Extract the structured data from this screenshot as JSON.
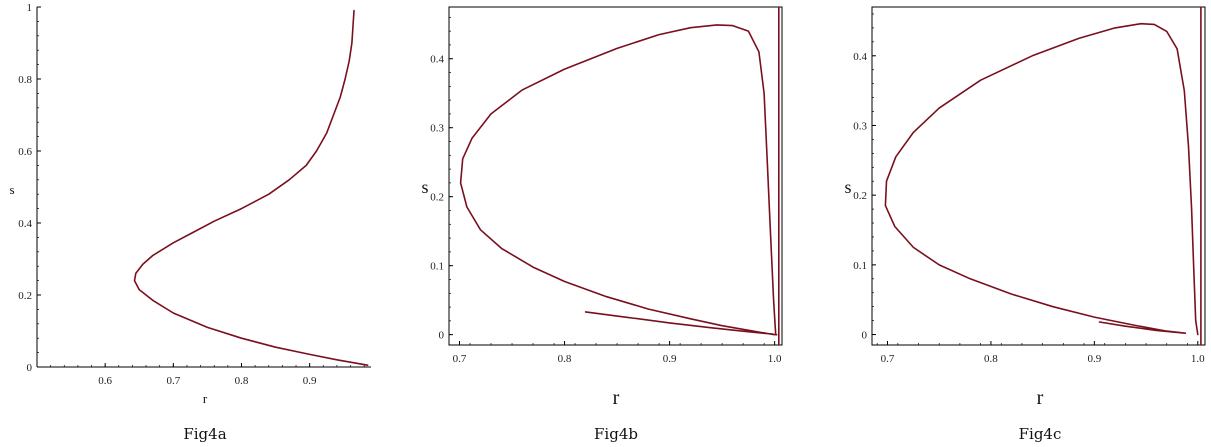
{
  "line_color": "#7a0f1e",
  "chart_data": [
    {
      "type": "line",
      "caption": "Fig4a",
      "xlabel": "r",
      "ylabel": "s",
      "xlim": [
        0.5,
        0.99
      ],
      "ylim": [
        0,
        1
      ],
      "x_ticks": [
        "0.6",
        "0.7",
        "0.8",
        "0.9"
      ],
      "x_tick_values": [
        0.6,
        0.7,
        0.8,
        0.9
      ],
      "y_ticks": [
        "0",
        "0.2",
        "0.4",
        "0.6",
        "0.8",
        "1"
      ],
      "y_tick_values": [
        0,
        0.2,
        0.4,
        0.6,
        0.8,
        1.0
      ],
      "series": [
        {
          "x": [
            0.985,
            0.94,
            0.9,
            0.85,
            0.8,
            0.75,
            0.7,
            0.67,
            0.65,
            0.643,
            0.645,
            0.655,
            0.67,
            0.7,
            0.73,
            0.76,
            0.8,
            0.84,
            0.87,
            0.895,
            0.91,
            0.925,
            0.935,
            0.945,
            0.952,
            0.958,
            0.962,
            0.965
          ],
          "y": [
            0.005,
            0.02,
            0.035,
            0.055,
            0.08,
            0.11,
            0.15,
            0.185,
            0.215,
            0.24,
            0.26,
            0.285,
            0.31,
            0.345,
            0.375,
            0.405,
            0.44,
            0.48,
            0.52,
            0.56,
            0.6,
            0.65,
            0.7,
            0.75,
            0.8,
            0.85,
            0.9,
            0.99
          ]
        }
      ]
    },
    {
      "type": "line",
      "caption": "Fig4b",
      "xlabel": "r",
      "ylabel": "s",
      "xlim": [
        0.69,
        1.007
      ],
      "ylim": [
        -0.015,
        0.475
      ],
      "x_ticks": [
        "0.7",
        "0.8",
        "0.9",
        "1.0"
      ],
      "x_tick_values": [
        0.7,
        0.8,
        0.9,
        1.0
      ],
      "y_ticks": [
        "0",
        "0.1",
        "0.2",
        "0.3",
        "0.4"
      ],
      "y_tick_values": [
        0,
        0.1,
        0.2,
        0.3,
        0.4
      ],
      "series": [
        {
          "x": [
            0.82,
            0.86,
            0.9,
            0.94,
            0.97,
            0.99,
            0.998,
            1.0,
            0.98,
            0.95,
            0.92,
            0.88,
            0.84,
            0.8,
            0.77,
            0.74,
            0.72,
            0.707,
            0.701,
            0.703,
            0.712,
            0.73,
            0.76,
            0.8,
            0.85,
            0.89,
            0.92,
            0.945,
            0.96,
            0.975,
            0.985,
            0.99,
            0.993,
            0.996,
            0.999,
            1.001,
            1.002
          ],
          "y": [
            0.033,
            0.025,
            0.017,
            0.01,
            0.005,
            0.002,
            0.001,
            0.0,
            0.005,
            0.013,
            0.023,
            0.037,
            0.055,
            0.077,
            0.098,
            0.125,
            0.152,
            0.185,
            0.22,
            0.255,
            0.285,
            0.32,
            0.355,
            0.385,
            0.415,
            0.435,
            0.445,
            0.449,
            0.448,
            0.44,
            0.41,
            0.35,
            0.25,
            0.15,
            0.05,
            0.0,
            0.0
          ]
        },
        {
          "x": [
            1.004,
            1.004
          ],
          "y": [
            -0.015,
            0.475
          ]
        }
      ]
    },
    {
      "type": "line",
      "caption": "Fig4c",
      "xlabel": "r",
      "ylabel": "s",
      "xlim": [
        0.685,
        1.007
      ],
      "ylim": [
        -0.015,
        0.47
      ],
      "x_ticks": [
        "0.7",
        "0.8",
        "0.9",
        "1.0"
      ],
      "x_tick_values": [
        0.7,
        0.8,
        0.9,
        1.0
      ],
      "y_ticks": [
        "0",
        "0.1",
        "0.2",
        "0.3",
        "0.4"
      ],
      "y_tick_values": [
        0,
        0.1,
        0.2,
        0.3,
        0.4
      ],
      "series": [
        {
          "x": [
            0.905,
            0.93,
            0.96,
            0.988,
            0.97,
            0.94,
            0.9,
            0.86,
            0.82,
            0.78,
            0.75,
            0.725,
            0.707,
            0.698,
            0.699,
            0.708,
            0.725,
            0.75,
            0.79,
            0.84,
            0.885,
            0.92,
            0.945,
            0.958,
            0.97,
            0.98,
            0.987,
            0.991,
            0.994,
            0.996,
            0.998,
            1.0
          ],
          "y": [
            0.018,
            0.012,
            0.006,
            0.002,
            0.005,
            0.013,
            0.025,
            0.04,
            0.058,
            0.08,
            0.1,
            0.125,
            0.155,
            0.185,
            0.22,
            0.255,
            0.29,
            0.325,
            0.365,
            0.4,
            0.425,
            0.44,
            0.446,
            0.445,
            0.435,
            0.41,
            0.35,
            0.27,
            0.18,
            0.1,
            0.02,
            0.0
          ]
        },
        {
          "x": [
            1.003,
            1.003
          ],
          "y": [
            -0.015,
            0.47
          ]
        }
      ]
    }
  ]
}
